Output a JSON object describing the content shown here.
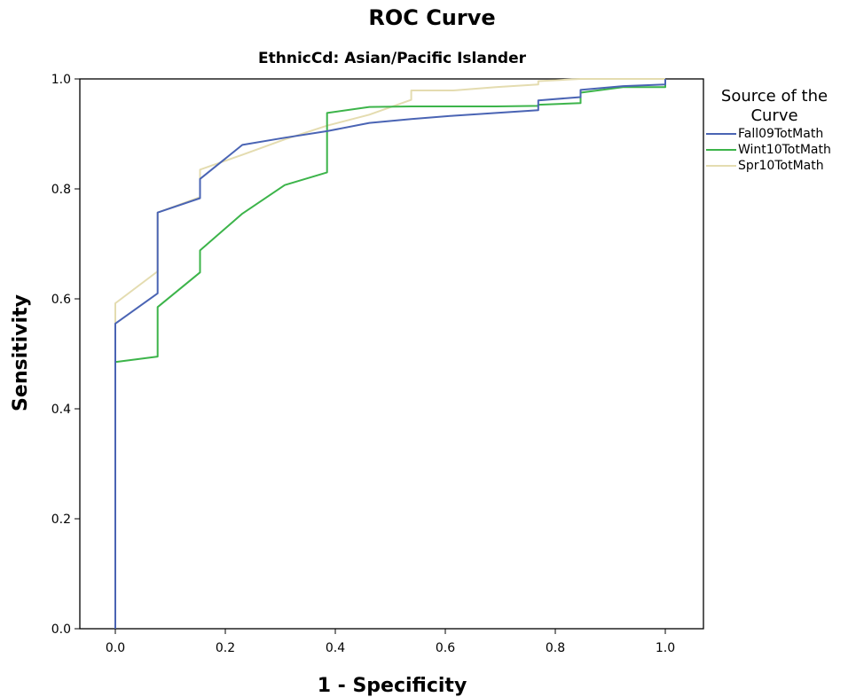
{
  "chart_data": {
    "type": "line",
    "title": "ROC Curve",
    "subtitle": "EthnicCd: Asian/Pacific Islander",
    "xlabel": "1 - Specificity",
    "ylabel": "Sensitivity",
    "xlim": [
      0.0,
      1.0
    ],
    "ylim": [
      0.0,
      1.0
    ],
    "xticks": [
      "0.0",
      "0.2",
      "0.4",
      "0.6",
      "0.8",
      "1.0"
    ],
    "yticks": [
      "0.0",
      "0.2",
      "0.4",
      "0.6",
      "0.8",
      "1.0"
    ],
    "grid": false,
    "legend": {
      "title": "Source of the Curve",
      "placement": "right"
    },
    "series": [
      {
        "name": "Fall09TotMath",
        "color": "#4a64b4",
        "points": [
          [
            0,
            0
          ],
          [
            0,
            0.555
          ],
          [
            0.077,
            0.61
          ],
          [
            0.077,
            0.757
          ],
          [
            0.154,
            0.783
          ],
          [
            0.154,
            0.818
          ],
          [
            0.231,
            0.88
          ],
          [
            0.308,
            0.893
          ],
          [
            0.385,
            0.905
          ],
          [
            0.462,
            0.92
          ],
          [
            0.538,
            0.927
          ],
          [
            0.615,
            0.933
          ],
          [
            0.692,
            0.938
          ],
          [
            0.769,
            0.943
          ],
          [
            0.769,
            0.961
          ],
          [
            0.846,
            0.967
          ],
          [
            0.846,
            0.98
          ],
          [
            0.923,
            0.987
          ],
          [
            1.0,
            0.99
          ],
          [
            1.0,
            1.0
          ]
        ]
      },
      {
        "name": "Wint10TotMath",
        "color": "#3cb44a",
        "points": [
          [
            0,
            0
          ],
          [
            0,
            0.485
          ],
          [
            0.077,
            0.495
          ],
          [
            0.077,
            0.585
          ],
          [
            0.154,
            0.648
          ],
          [
            0.154,
            0.688
          ],
          [
            0.231,
            0.755
          ],
          [
            0.308,
            0.807
          ],
          [
            0.385,
            0.83
          ],
          [
            0.385,
            0.938
          ],
          [
            0.462,
            0.949
          ],
          [
            0.538,
            0.95
          ],
          [
            0.615,
            0.95
          ],
          [
            0.692,
            0.95
          ],
          [
            0.769,
            0.951
          ],
          [
            0.769,
            0.953
          ],
          [
            0.846,
            0.956
          ],
          [
            0.846,
            0.975
          ],
          [
            0.923,
            0.985
          ],
          [
            1.0,
            0.985
          ],
          [
            1.0,
            1.0
          ]
        ]
      },
      {
        "name": "Spr10TotMath",
        "color": "#e4dcb0",
        "points": [
          [
            0,
            0
          ],
          [
            0,
            0.592
          ],
          [
            0.077,
            0.65
          ],
          [
            0.077,
            0.757
          ],
          [
            0.154,
            0.785
          ],
          [
            0.154,
            0.835
          ],
          [
            0.231,
            0.862
          ],
          [
            0.308,
            0.89
          ],
          [
            0.385,
            0.915
          ],
          [
            0.462,
            0.935
          ],
          [
            0.538,
            0.962
          ],
          [
            0.538,
            0.979
          ],
          [
            0.615,
            0.979
          ],
          [
            0.692,
            0.985
          ],
          [
            0.769,
            0.99
          ],
          [
            0.769,
            0.996
          ],
          [
            0.846,
            1.0
          ],
          [
            1.0,
            1.0
          ]
        ]
      }
    ]
  }
}
